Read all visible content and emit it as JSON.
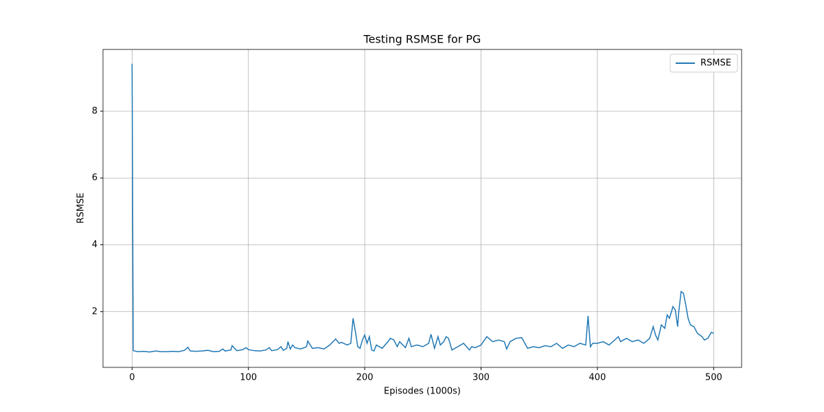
{
  "chart_data": {
    "type": "line",
    "title": "Testing RSMSE for PG",
    "x_label": "Episodes (1000s)",
    "y_label": "RSMSE",
    "x": [
      0,
      1,
      5,
      10,
      15,
      20,
      25,
      30,
      35,
      40,
      45,
      48,
      50,
      55,
      60,
      65,
      70,
      75,
      78,
      80,
      85,
      86,
      90,
      95,
      98,
      100,
      105,
      110,
      115,
      118,
      120,
      125,
      128,
      130,
      133,
      134,
      136,
      138,
      140,
      145,
      150,
      151,
      155,
      160,
      165,
      170,
      175,
      178,
      180,
      185,
      188,
      190,
      192,
      194,
      196,
      198,
      200,
      202,
      204,
      206,
      208,
      210,
      215,
      220,
      222,
      225,
      228,
      230,
      235,
      238,
      240,
      245,
      250,
      255,
      257,
      260,
      263,
      265,
      268,
      270,
      272,
      275,
      280,
      285,
      290,
      292,
      295,
      300,
      305,
      310,
      315,
      320,
      322,
      325,
      330,
      335,
      340,
      345,
      350,
      355,
      360,
      365,
      370,
      375,
      380,
      385,
      390,
      392,
      394,
      396,
      400,
      405,
      410,
      415,
      418,
      420,
      425,
      430,
      435,
      440,
      445,
      448,
      450,
      452,
      455,
      458,
      460,
      462,
      465,
      467,
      469,
      470,
      472,
      474,
      476,
      478,
      480,
      483,
      486,
      490,
      492,
      495,
      498,
      500
    ],
    "series": [
      {
        "name": "RSMSE",
        "color": "#1f77b4",
        "values": [
          9.42,
          0.83,
          0.8,
          0.81,
          0.79,
          0.82,
          0.8,
          0.8,
          0.81,
          0.8,
          0.84,
          0.93,
          0.82,
          0.81,
          0.82,
          0.84,
          0.8,
          0.81,
          0.88,
          0.82,
          0.85,
          0.98,
          0.83,
          0.86,
          0.92,
          0.86,
          0.83,
          0.82,
          0.85,
          0.92,
          0.83,
          0.86,
          0.95,
          0.84,
          0.9,
          1.1,
          0.88,
          1.0,
          0.92,
          0.88,
          0.95,
          1.12,
          0.9,
          0.92,
          0.88,
          1.0,
          1.18,
          1.05,
          1.08,
          1.0,
          1.05,
          1.8,
          1.4,
          0.95,
          0.9,
          1.15,
          1.3,
          1.05,
          1.25,
          0.85,
          0.82,
          1.0,
          0.9,
          1.1,
          1.2,
          1.15,
          0.95,
          1.1,
          0.92,
          1.2,
          0.95,
          1.0,
          0.95,
          1.05,
          1.32,
          0.9,
          1.25,
          1.0,
          1.1,
          1.25,
          1.2,
          0.85,
          0.95,
          1.05,
          0.85,
          0.95,
          0.92,
          1.0,
          1.25,
          1.1,
          1.15,
          1.1,
          0.88,
          1.1,
          1.2,
          1.22,
          0.9,
          0.95,
          0.92,
          0.98,
          0.95,
          1.05,
          0.9,
          1.0,
          0.95,
          1.05,
          1.0,
          1.87,
          0.95,
          1.05,
          1.05,
          1.1,
          1.0,
          1.15,
          1.25,
          1.1,
          1.2,
          1.1,
          1.15,
          1.05,
          1.2,
          1.55,
          1.3,
          1.15,
          1.6,
          1.5,
          1.9,
          1.8,
          2.15,
          2.05,
          1.55,
          2.0,
          2.6,
          2.55,
          2.2,
          1.8,
          1.6,
          1.55,
          1.35,
          1.25,
          1.15,
          1.2,
          1.38,
          1.35
        ]
      }
    ],
    "xlim": [
      -25,
      524
    ],
    "ylim": [
      0.33,
      9.85
    ],
    "xticks": [
      0,
      100,
      200,
      300,
      400,
      500
    ],
    "yticks": [
      2,
      4,
      6,
      8
    ],
    "grid": true,
    "legend": "upper right"
  }
}
